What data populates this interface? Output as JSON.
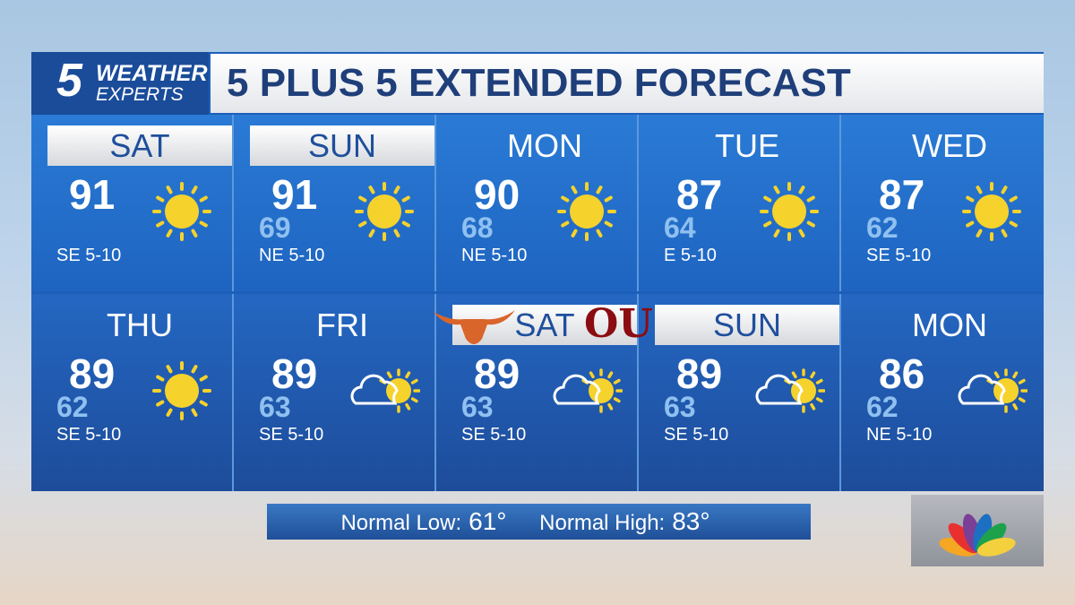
{
  "logo": {
    "number": "5",
    "line1": "WEATHER",
    "line2": "EXPERTS"
  },
  "title": "5 PLUS 5 EXTENDED FORECAST",
  "rows": [
    [
      {
        "day": "SAT",
        "hi": "91",
        "lo": "",
        "wind": "SE 5-10",
        "icon": "sun-icon",
        "highlight": true
      },
      {
        "day": "SUN",
        "hi": "91",
        "lo": "69",
        "wind": "NE 5-10",
        "icon": "sun-icon",
        "highlight": true
      },
      {
        "day": "MON",
        "hi": "90",
        "lo": "68",
        "wind": "NE 5-10",
        "icon": "sun-icon",
        "highlight": false
      },
      {
        "day": "TUE",
        "hi": "87",
        "lo": "64",
        "wind": "E 5-10",
        "icon": "sun-icon",
        "highlight": false
      },
      {
        "day": "WED",
        "hi": "87",
        "lo": "62",
        "wind": "SE 5-10",
        "icon": "sun-icon",
        "highlight": false
      }
    ],
    [
      {
        "day": "THU",
        "hi": "89",
        "lo": "62",
        "wind": "SE 5-10",
        "icon": "sun-icon",
        "highlight": false
      },
      {
        "day": "FRI",
        "hi": "89",
        "lo": "63",
        "wind": "SE 5-10",
        "icon": "partly-cloudy-icon",
        "highlight": false
      },
      {
        "day": "SAT",
        "hi": "89",
        "lo": "63",
        "wind": "SE 5-10",
        "icon": "partly-cloudy-icon",
        "highlight": true,
        "teams": true
      },
      {
        "day": "SUN",
        "hi": "89",
        "lo": "63",
        "wind": "SE 5-10",
        "icon": "partly-cloudy-icon",
        "highlight": true
      },
      {
        "day": "MON",
        "hi": "86",
        "lo": "62",
        "wind": "NE 5-10",
        "icon": "partly-cloudy-icon",
        "highlight": false
      }
    ]
  ],
  "teams": {
    "left": "longhorn-logo",
    "right": "OU"
  },
  "normals": {
    "low_label": "Normal Low:",
    "low": "61°",
    "high_label": "Normal High:",
    "high": "83°"
  },
  "colors": {
    "panel": "#1d5fb8",
    "sun": "#f6d22c",
    "low_temp": "#8fc0f0",
    "title_text": "#1f3f7a"
  }
}
